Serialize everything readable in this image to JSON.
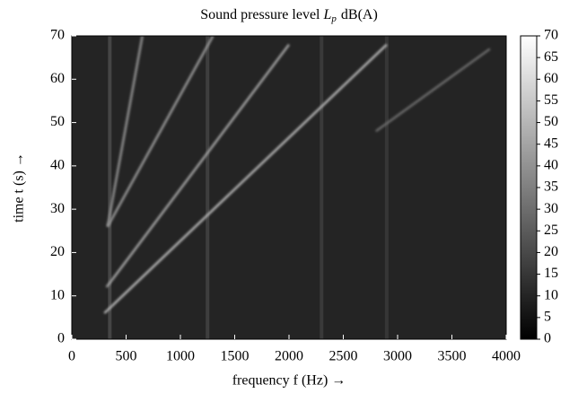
{
  "chart_data": {
    "type": "heatmap",
    "title": "Sound pressure level",
    "title_symbol": "L",
    "title_subscript": "p",
    "title_unit": "dB(A)",
    "xlabel": "frequency f (Hz) →",
    "ylabel": "time t (s) →",
    "xlim": [
      0,
      4000
    ],
    "xticks": [
      0,
      500,
      1000,
      1500,
      2000,
      2500,
      3000,
      3500,
      4000
    ],
    "ylim": [
      0,
      70
    ],
    "yticks": [
      0,
      10,
      20,
      30,
      40,
      50,
      60,
      70
    ],
    "clim": [
      0,
      70
    ],
    "cticks": [
      0,
      5,
      10,
      15,
      20,
      25,
      30,
      35,
      40,
      45,
      50,
      55,
      60,
      65,
      70
    ],
    "background_level": 10,
    "stripes": [
      {
        "f": 1250,
        "level": 22
      },
      {
        "f": 2300,
        "level": 20
      },
      {
        "f": 2900,
        "level": 18
      },
      {
        "f": 350,
        "level": 25
      }
    ],
    "ridges": [
      {
        "f": [
          300,
          2900
        ],
        "t": [
          6,
          68
        ],
        "level": 50
      },
      {
        "f": [
          320,
          2000
        ],
        "t": [
          12,
          68
        ],
        "level": 45
      },
      {
        "f": [
          330,
          1300
        ],
        "t": [
          26,
          70
        ],
        "level": 42
      },
      {
        "f": [
          330,
          650
        ],
        "t": [
          26,
          70
        ],
        "level": 40
      },
      {
        "f": [
          2800,
          3850
        ],
        "t": [
          48,
          67
        ],
        "level": 30
      },
      {
        "f": [
          2900,
          2960
        ],
        "t": [
          68,
          68
        ],
        "level": 55
      }
    ]
  }
}
